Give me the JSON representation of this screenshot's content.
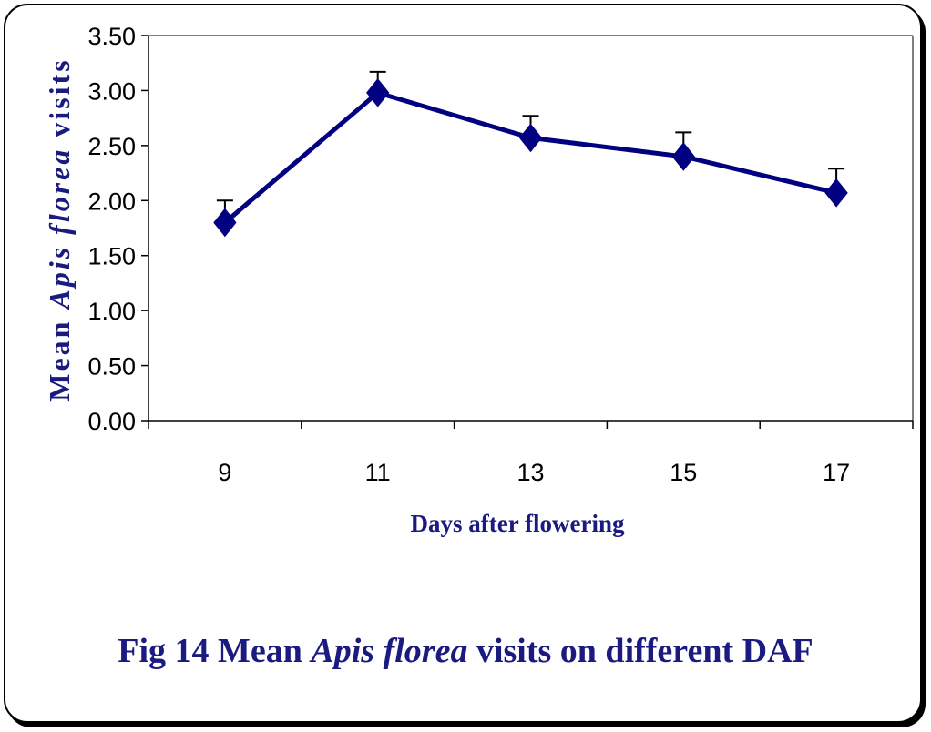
{
  "chart_data": {
    "type": "line",
    "x": [
      9,
      11,
      13,
      15,
      17
    ],
    "values": [
      1.8,
      2.98,
      2.57,
      2.4,
      2.07
    ],
    "error_plus": [
      0.2,
      0.19,
      0.2,
      0.22,
      0.22
    ],
    "yticks": [
      "0.00",
      "0.50",
      "1.00",
      "1.50",
      "2.00",
      "2.50",
      "3.00",
      "3.50"
    ],
    "xticks": [
      "9",
      "11",
      "13",
      "15",
      "17"
    ],
    "ylim": [
      0,
      3.5
    ],
    "xlabel": "Days after flowering",
    "ylabel": {
      "part1": "Mean ",
      "part2_italic": "Apis florea",
      "part3": " visits"
    },
    "title": "",
    "grid": false,
    "legend": "none",
    "series_color": "#000080"
  },
  "caption": {
    "prefix": "Fig 14 Mean ",
    "italic": "Apis florea",
    "suffix": " visits on different DAF"
  }
}
